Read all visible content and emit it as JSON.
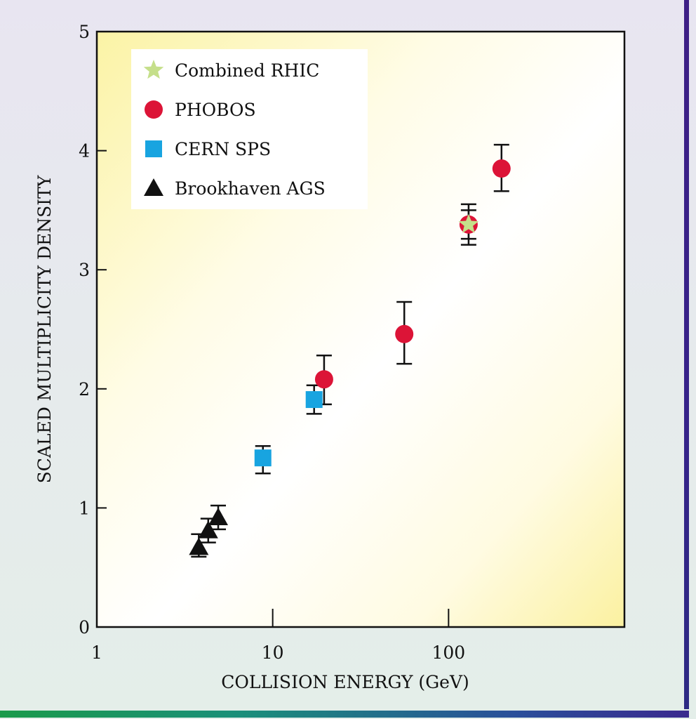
{
  "chart_data": {
    "type": "scatter",
    "title": "",
    "xlabel": "COLLISION ENERGY (GeV)",
    "ylabel": "SCALED MULTIPLICITY DENSITY",
    "xscale": "log",
    "xlim": [
      1,
      1000
    ],
    "ylim": [
      0,
      5
    ],
    "xticks": [
      1,
      10,
      100
    ],
    "xtick_labels": [
      "1",
      "10",
      "100"
    ],
    "yticks": [
      0,
      1,
      2,
      3,
      4,
      5
    ],
    "ytick_labels": [
      "0",
      "1",
      "2",
      "3",
      "4",
      "5"
    ],
    "grid": false,
    "legend_position": "top-left",
    "series": [
      {
        "name": "Combined RHIC",
        "marker": "star",
        "color": "#c5df8a",
        "points": [
          {
            "x": 130,
            "y": 3.38,
            "yerr": [
              0.17,
              0.17
            ]
          }
        ]
      },
      {
        "name": "PHOBOS",
        "marker": "circle",
        "color": "#dc1437",
        "points": [
          {
            "x": 19.6,
            "y": 2.08,
            "yerr": [
              0.21,
              0.2
            ]
          },
          {
            "x": 56,
            "y": 2.46,
            "yerr": [
              0.25,
              0.27
            ]
          },
          {
            "x": 130,
            "y": 3.38,
            "yerr": [
              0.12,
              0.12
            ]
          },
          {
            "x": 200,
            "y": 3.85,
            "yerr": [
              0.19,
              0.2
            ]
          }
        ]
      },
      {
        "name": "CERN SPS",
        "marker": "square",
        "color": "#18a4e0",
        "points": [
          {
            "x": 8.8,
            "y": 1.42,
            "yerr": [
              0.13,
              0.1
            ]
          },
          {
            "x": 17.2,
            "y": 1.91,
            "yerr": [
              0.12,
              0.12
            ]
          }
        ]
      },
      {
        "name": "Brookhaven AGS",
        "marker": "triangle",
        "color": "#111111",
        "points": [
          {
            "x": 3.8,
            "y": 0.67,
            "yerr": [
              0.08,
              0.11
            ]
          },
          {
            "x": 4.3,
            "y": 0.81,
            "yerr": [
              0.1,
              0.1
            ]
          },
          {
            "x": 4.9,
            "y": 0.92,
            "yerr": [
              0.1,
              0.1
            ]
          }
        ]
      }
    ]
  }
}
